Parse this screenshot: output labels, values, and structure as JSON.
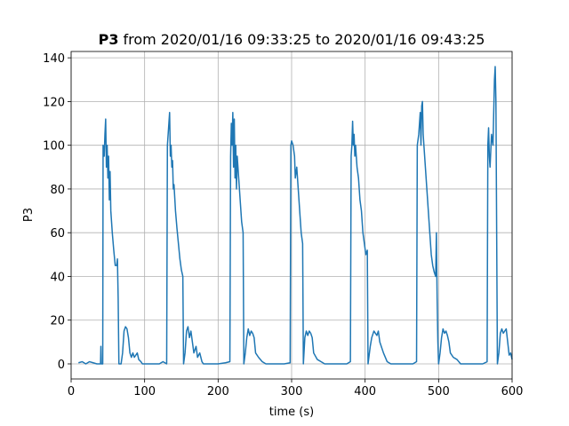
{
  "chart_data": {
    "type": "line",
    "title_parts": [
      "P3",
      "from 2020/01/16 09:33:25 to 2020/01/16 09:43:25"
    ],
    "xlabel": "time (s)",
    "ylabel": "P3",
    "color": "#1f77b4",
    "grid": true,
    "xlim": [
      0,
      600
    ],
    "xticks": [
      0,
      100,
      200,
      300,
      400,
      500,
      600
    ],
    "ylim": [
      -6.9,
      142.9
    ],
    "yticks": [
      0,
      20,
      40,
      60,
      80,
      100,
      120,
      140
    ],
    "x": [
      10,
      15,
      20,
      25,
      30,
      35,
      40,
      40.5,
      41,
      43,
      43.5,
      45,
      46,
      47,
      48,
      49,
      50,
      51,
      52,
      53,
      54,
      55,
      56,
      58,
      60,
      62,
      63,
      64,
      65,
      68,
      70,
      72,
      74,
      76,
      78,
      80,
      82,
      84,
      86,
      90,
      92,
      95,
      97,
      110,
      120,
      125,
      130,
      131,
      133,
      134,
      135,
      136,
      137,
      138,
      139,
      140,
      142,
      144,
      146,
      148,
      150,
      152,
      153,
      155,
      157,
      159,
      161,
      163,
      165,
      167,
      170,
      172,
      175,
      178,
      180,
      200,
      210,
      216,
      217,
      218,
      219,
      220,
      221,
      222,
      223,
      224,
      225,
      226,
      228,
      230,
      232,
      234,
      235,
      237,
      239,
      241,
      243,
      245,
      247,
      249,
      251,
      255,
      260,
      265,
      290,
      298,
      299,
      300,
      302,
      304,
      305,
      307,
      309,
      311,
      313,
      315,
      316,
      318,
      320,
      322,
      324,
      326,
      328,
      330,
      335,
      340,
      345,
      375,
      380,
      381,
      382,
      383,
      384,
      385,
      386,
      387,
      389,
      391,
      393,
      395,
      397,
      399,
      401,
      403,
      404,
      407,
      409,
      412,
      414,
      416,
      418,
      420,
      425,
      430,
      435,
      465,
      470,
      471,
      473,
      475,
      476,
      477,
      478,
      479,
      480,
      482,
      484,
      486,
      488,
      490,
      492,
      494,
      496,
      497,
      498,
      499,
      500,
      502,
      504,
      506,
      508,
      510,
      512,
      514,
      516,
      520,
      525,
      530,
      560,
      566,
      567,
      568,
      569,
      570,
      572,
      574,
      575,
      576,
      577,
      578,
      579,
      580,
      582,
      584,
      586,
      588,
      590,
      592,
      594,
      596,
      598,
      600
    ],
    "values": [
      0.5,
      1,
      0,
      1,
      0.5,
      0,
      0,
      8,
      0,
      0,
      100,
      95,
      105,
      112,
      90,
      100,
      85,
      95,
      75,
      88,
      70,
      65,
      60,
      52,
      45,
      45,
      48,
      30,
      0,
      0,
      5,
      15,
      17,
      16,
      12,
      5,
      3,
      5,
      3,
      5,
      2,
      1,
      0,
      0,
      0,
      1,
      0,
      100,
      110,
      115,
      95,
      100,
      90,
      93,
      80,
      82,
      70,
      62,
      55,
      48,
      43,
      40,
      0,
      5,
      15,
      17,
      12,
      15,
      10,
      5,
      8,
      3,
      5,
      1,
      0,
      0,
      0.5,
      1,
      95,
      110,
      100,
      115,
      90,
      112,
      85,
      100,
      80,
      95,
      85,
      75,
      65,
      60,
      0,
      5,
      12,
      16,
      13,
      15,
      14,
      12,
      5,
      3,
      1,
      0,
      0,
      0.5,
      100,
      102,
      100,
      95,
      85,
      90,
      80,
      70,
      60,
      55,
      0,
      12,
      15,
      13,
      15,
      14,
      12,
      5,
      2,
      1,
      0,
      0,
      1,
      95,
      100,
      111,
      100,
      105,
      95,
      100,
      90,
      85,
      75,
      70,
      60,
      55,
      50,
      52,
      0,
      8,
      12,
      15,
      14,
      13,
      15,
      10,
      5,
      1,
      0,
      0,
      1,
      100,
      105,
      115,
      100,
      118,
      120,
      105,
      100,
      90,
      80,
      70,
      60,
      50,
      45,
      42,
      40,
      60,
      30,
      10,
      0,
      5,
      12,
      16,
      14,
      15,
      13,
      10,
      5,
      3,
      2,
      0,
      0,
      1,
      100,
      108,
      95,
      90,
      105,
      100,
      115,
      130,
      136,
      120,
      60,
      0,
      5,
      14,
      16,
      14,
      15,
      16,
      10,
      4,
      5,
      2
    ]
  }
}
